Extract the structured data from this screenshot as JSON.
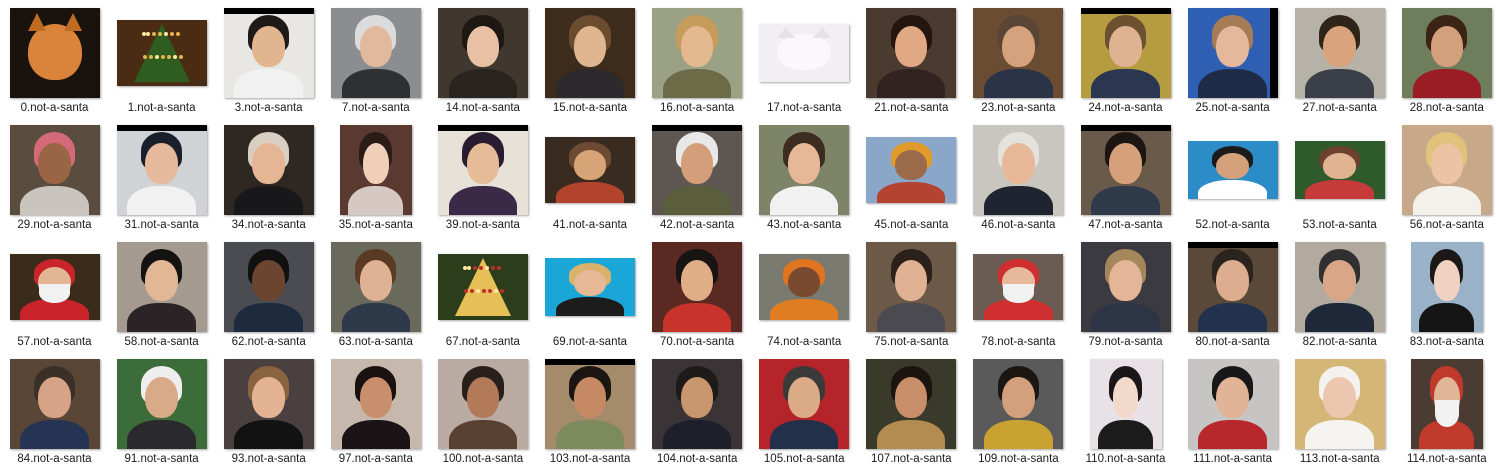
{
  "files": [
    {
      "name": "0.not-a-santa",
      "bg": "#1a120c",
      "skin": "#d9843a",
      "hair": "#c06b22",
      "cloth": "#b8621f",
      "shape": "sq",
      "kind": "cat"
    },
    {
      "name": "1.not-a-santa",
      "bg": "#4a2c14",
      "skin": "#2f5d1f",
      "hair": "#e6b34a",
      "cloth": "#8a5a22",
      "shape": "land",
      "kind": "tree"
    },
    {
      "name": "3.not-a-santa",
      "bg": "#e9e7e4",
      "skin": "#e2b591",
      "hair": "#1e1a18",
      "cloth": "#f1f1f1",
      "shape": "sq",
      "kind": "person",
      "lb": "top"
    },
    {
      "name": "7.not-a-santa",
      "bg": "#8b8d91",
      "skin": "#e1b99c",
      "hair": "#dcdcdc",
      "cloth": "#2e3033",
      "shape": "sq",
      "kind": "person"
    },
    {
      "name": "14.not-a-santa",
      "bg": "#40372e",
      "skin": "#e8c1a4",
      "hair": "#1e1814",
      "cloth": "#2a2420",
      "shape": "sq",
      "kind": "person"
    },
    {
      "name": "15.not-a-santa",
      "bg": "#3d2b1c",
      "skin": "#e0b690",
      "hair": "#6b4c2e",
      "cloth": "#2c2a2d",
      "shape": "sq",
      "kind": "person"
    },
    {
      "name": "16.not-a-santa",
      "bg": "#9aa184",
      "skin": "#e4b98f",
      "hair": "#c59c5c",
      "cloth": "#6d6a48",
      "shape": "sq",
      "kind": "person"
    },
    {
      "name": "17.not-a-santa",
      "bg": "#f1eef4",
      "skin": "#fbf7fb",
      "hair": "#e9e1ea",
      "cloth": "#f4eff5",
      "shape": "short",
      "kind": "cat"
    },
    {
      "name": "21.not-a-santa",
      "bg": "#4b3a2f",
      "skin": "#e0a983",
      "hair": "#24160e",
      "cloth": "#332320",
      "shape": "sq",
      "kind": "person"
    },
    {
      "name": "23.not-a-santa",
      "bg": "#6a4c33",
      "skin": "#d6a27d",
      "hair": "#5a4535",
      "cloth": "#2a3446",
      "shape": "sq",
      "kind": "person"
    },
    {
      "name": "24.not-a-santa",
      "bg": "#b69c41",
      "skin": "#dfb291",
      "hair": "#6b5130",
      "cloth": "#2b3650",
      "shape": "sq",
      "kind": "person",
      "lb": "top"
    },
    {
      "name": "25.not-a-santa",
      "bg": "#2f5fb2",
      "skin": "#e5b89b",
      "hair": "#a67c56",
      "cloth": "#1f2c48",
      "shape": "sq",
      "kind": "person",
      "lb": "right"
    },
    {
      "name": "27.not-a-santa",
      "bg": "#b6b2a7",
      "skin": "#d9a47d",
      "hair": "#2f2418",
      "cloth": "#3b4048",
      "shape": "sq",
      "kind": "person"
    },
    {
      "name": "28.not-a-santa",
      "bg": "#6e7d5b",
      "skin": "#d49f7c",
      "hair": "#3b2415",
      "cloth": "#9a1d25",
      "shape": "sq",
      "kind": "person"
    },
    {
      "name": "29.not-a-santa",
      "bg": "#5a4c3f",
      "skin": "#9a6545",
      "hair": "#d46a78",
      "cloth": "#c9c4bd",
      "shape": "sq",
      "kind": "person"
    },
    {
      "name": "31.not-a-santa",
      "bg": "#cfd3d6",
      "skin": "#e6b89c",
      "hair": "#1a1f2c",
      "cloth": "#f1f1f1",
      "shape": "sq",
      "kind": "person",
      "lb": "top"
    },
    {
      "name": "34.not-a-santa",
      "bg": "#2e2722",
      "skin": "#e6b594",
      "hair": "#d8cfc2",
      "cloth": "#18181a",
      "shape": "sq",
      "kind": "person"
    },
    {
      "name": "35.not-a-santa",
      "bg": "#5a3a30",
      "skin": "#f0cfb8",
      "hair": "#2c1c17",
      "cloth": "#d6c8c2",
      "shape": "narrow",
      "kind": "person"
    },
    {
      "name": "39.not-a-santa",
      "bg": "#e6e2d8",
      "skin": "#e6bb98",
      "hair": "#2a1c30",
      "cloth": "#3a2a48",
      "shape": "sq",
      "kind": "person",
      "lb": "top"
    },
    {
      "name": "41.not-a-santa",
      "bg": "#3a2b20",
      "skin": "#d7a477",
      "hair": "#6c4b32",
      "cloth": "#b4432e",
      "shape": "land",
      "kind": "person"
    },
    {
      "name": "42.not-a-santa",
      "bg": "#5e5650",
      "skin": "#d59e7a",
      "hair": "#e8e8e8",
      "cloth": "#5a5e3c",
      "shape": "sq",
      "kind": "person",
      "lb": "top"
    },
    {
      "name": "43.not-a-santa",
      "bg": "#7d8468",
      "skin": "#e7b897",
      "hair": "#3c2c22",
      "cloth": "#f1f1f1",
      "shape": "sq",
      "kind": "person"
    },
    {
      "name": "45.not-a-santa",
      "bg": "#8aa6c8",
      "skin": "#9b6a4a",
      "hair": "#e19b2a",
      "cloth": "#b54331",
      "shape": "land",
      "kind": "person"
    },
    {
      "name": "46.not-a-santa",
      "bg": "#c9c6c0",
      "skin": "#e7b898",
      "hair": "#e4e2dc",
      "cloth": "#1f2530",
      "shape": "sq",
      "kind": "person"
    },
    {
      "name": "47.not-a-santa",
      "bg": "#6a5a4a",
      "skin": "#d6a07a",
      "hair": "#1c1612",
      "cloth": "#2f3a4a",
      "shape": "sq",
      "kind": "person",
      "lb": "top"
    },
    {
      "name": "52.not-a-santa",
      "bg": "#2b8cc8",
      "skin": "#d4a07a",
      "hair": "#1a1a1a",
      "cloth": "#ffffff",
      "shape": "short",
      "kind": "person"
    },
    {
      "name": "53.not-a-santa",
      "bg": "#2f5a2c",
      "skin": "#e2b391",
      "hair": "#6c4130",
      "cloth": "#c63a3a",
      "shape": "short",
      "kind": "person"
    },
    {
      "name": "56.not-a-santa",
      "bg": "#c7a98a",
      "skin": "#ecc3a3",
      "hair": "#e0c27a",
      "cloth": "#f4f0ea",
      "shape": "sq",
      "kind": "person"
    },
    {
      "name": "57.not-a-santa",
      "bg": "#3a2b1a",
      "skin": "#e2b594",
      "hair": "#f1f1f1",
      "cloth": "#c8242a",
      "shape": "land",
      "kind": "santa"
    },
    {
      "name": "58.not-a-santa",
      "bg": "#a59a8f",
      "skin": "#e2b796",
      "hair": "#151212",
      "cloth": "#2a2426",
      "shape": "sq",
      "kind": "person"
    },
    {
      "name": "62.not-a-santa",
      "bg": "#4a4c52",
      "skin": "#6c4530",
      "hair": "#111111",
      "cloth": "#1e2a3d",
      "shape": "sq",
      "kind": "person"
    },
    {
      "name": "63.not-a-santa",
      "bg": "#6a6a5c",
      "skin": "#e0b294",
      "hair": "#5a3a22",
      "cloth": "#2d3848",
      "shape": "sq",
      "kind": "person"
    },
    {
      "name": "67.not-a-santa",
      "bg": "#2c3d1c",
      "skin": "#e6c056",
      "hair": "#c22c2a",
      "cloth": "#6a7d2a",
      "shape": "land",
      "kind": "tree"
    },
    {
      "name": "69.not-a-santa",
      "bg": "#1aa6d6",
      "skin": "#e6b895",
      "hair": "#d9b26c",
      "cloth": "#1c1c1c",
      "shape": "short",
      "kind": "person"
    },
    {
      "name": "70.not-a-santa",
      "bg": "#5a2a22",
      "skin": "#dfad86",
      "hair": "#181414",
      "cloth": "#c8332b",
      "shape": "sq",
      "kind": "person"
    },
    {
      "name": "74.not-a-santa",
      "bg": "#7b7a70",
      "skin": "#7a4a30",
      "hair": "#e1741f",
      "cloth": "#e07d22",
      "shape": "land",
      "kind": "person"
    },
    {
      "name": "75.not-a-santa",
      "bg": "#6c5948",
      "skin": "#e0b193",
      "hair": "#2b201a",
      "cloth": "#4a4a50",
      "shape": "sq",
      "kind": "person"
    },
    {
      "name": "78.not-a-santa",
      "bg": "#6a5c52",
      "skin": "#e7b99b",
      "hair": "#f1f1f1",
      "cloth": "#d02f2f",
      "shape": "land",
      "kind": "santa"
    },
    {
      "name": "79.not-a-santa",
      "bg": "#3a3a40",
      "skin": "#e5b597",
      "hair": "#a4875a",
      "cloth": "#2d3445",
      "shape": "sq",
      "kind": "person"
    },
    {
      "name": "80.not-a-santa",
      "bg": "#5a4838",
      "skin": "#dcad8e",
      "hair": "#2b231d",
      "cloth": "#22314e",
      "shape": "sq",
      "kind": "person",
      "lb": "top"
    },
    {
      "name": "82.not-a-santa",
      "bg": "#b2aa9e",
      "skin": "#d9a788",
      "hair": "#303030",
      "cloth": "#1e2838",
      "shape": "sq",
      "kind": "person"
    },
    {
      "name": "83.not-a-santa",
      "bg": "#9ab2c8",
      "skin": "#efd2c1",
      "hair": "#1c1818",
      "cloth": "#151515",
      "shape": "narrow",
      "kind": "person"
    },
    {
      "name": "84.not-a-santa",
      "bg": "#5a4636",
      "skin": "#d7a386",
      "hair": "#3a3028",
      "cloth": "#253452",
      "shape": "sq",
      "kind": "person"
    },
    {
      "name": "91.not-a-santa",
      "bg": "#3b6c3a",
      "skin": "#d9aa88",
      "hair": "#eeeeee",
      "cloth": "#2a2a2e",
      "shape": "sq",
      "kind": "person"
    },
    {
      "name": "93.not-a-santa",
      "bg": "#4a4040",
      "skin": "#e3b394",
      "hair": "#8a6440",
      "cloth": "#121212",
      "shape": "sq",
      "kind": "person"
    },
    {
      "name": "97.not-a-santa",
      "bg": "#c6b8ad",
      "skin": "#c98e6c",
      "hair": "#1a1210",
      "cloth": "#1a1416",
      "shape": "sq",
      "kind": "person"
    },
    {
      "name": "100.not-a-santa",
      "bg": "#b9aba2",
      "skin": "#b37a5a",
      "hair": "#2a201b",
      "cloth": "#5a4030",
      "shape": "sq",
      "kind": "person"
    },
    {
      "name": "103.not-a-santa",
      "bg": "#a38b6c",
      "skin": "#c58a64",
      "hair": "#1b1612",
      "cloth": "#7d8a5c",
      "shape": "sq",
      "kind": "person",
      "lb": "top"
    },
    {
      "name": "104.not-a-santa",
      "bg": "#3a3436",
      "skin": "#c9976e",
      "hair": "#1d1a18",
      "cloth": "#1e1f2a",
      "shape": "sq",
      "kind": "person"
    },
    {
      "name": "105.not-a-santa",
      "bg": "#b5242b",
      "skin": "#dbab88",
      "hair": "#3a3a3a",
      "cloth": "#23304a",
      "shape": "sq",
      "kind": "person"
    },
    {
      "name": "107.not-a-santa",
      "bg": "#3a3a2a",
      "skin": "#c98f6b",
      "hair": "#1b140f",
      "cloth": "#b38c52",
      "shape": "sq",
      "kind": "person"
    },
    {
      "name": "109.not-a-santa",
      "bg": "#5a5a5a",
      "skin": "#d3a07e",
      "hair": "#1c1612",
      "cloth": "#c9a232",
      "shape": "sq",
      "kind": "person"
    },
    {
      "name": "110.not-a-santa",
      "bg": "#e8e2e6",
      "skin": "#f2d9cc",
      "hair": "#1a1618",
      "cloth": "#1c1c1c",
      "shape": "narrow",
      "kind": "person"
    },
    {
      "name": "111.not-a-santa",
      "bg": "#c7c5c4",
      "skin": "#e2b497",
      "hair": "#181818",
      "cloth": "#b8272c",
      "shape": "sq",
      "kind": "person"
    },
    {
      "name": "113.not-a-santa",
      "bg": "#d4b776",
      "skin": "#ecc7b0",
      "hair": "#f4f2ee",
      "cloth": "#f6f4f0",
      "shape": "sq",
      "kind": "person"
    },
    {
      "name": "114.not-a-santa",
      "bg": "#4a3c33",
      "skin": "#e1b596",
      "hair": "#f2f2f2",
      "cloth": "#c03a2c",
      "shape": "narrow",
      "kind": "santa"
    }
  ]
}
